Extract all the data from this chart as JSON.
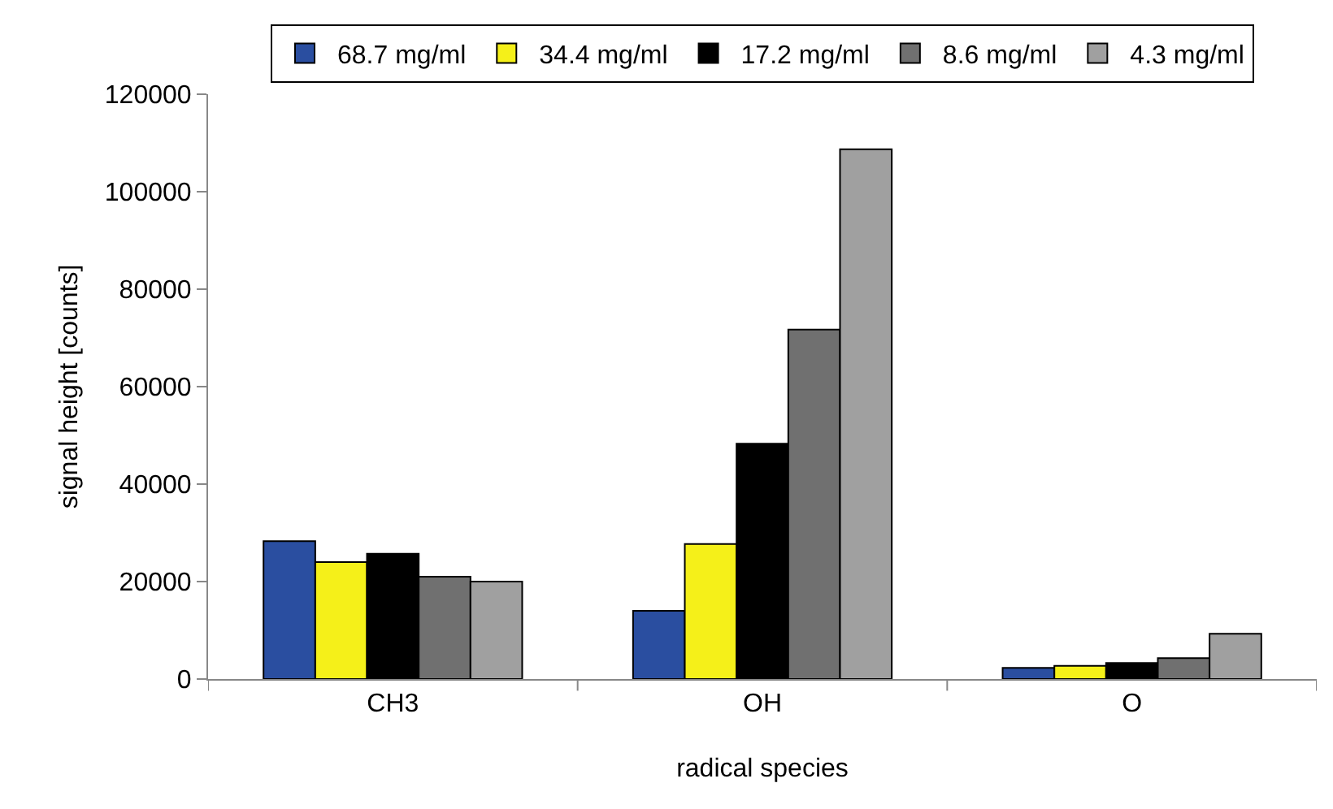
{
  "chart_data": {
    "type": "bar",
    "xlabel": "radical species",
    "ylabel": "signal height [counts]",
    "categories": [
      "CH3",
      "OH",
      "O"
    ],
    "series": [
      {
        "name": "68.7 mg/ml",
        "color": "#2a4ea0",
        "values": [
          28300,
          14000,
          2300
        ]
      },
      {
        "name": "34.4 mg/ml",
        "color": "#f5f019",
        "values": [
          24000,
          27700,
          2700
        ]
      },
      {
        "name": "17.2 mg/ml",
        "color": "#000000",
        "values": [
          25700,
          48300,
          3300
        ]
      },
      {
        "name": "8.6 mg/ml",
        "color": "#707070",
        "values": [
          21000,
          71700,
          4300
        ]
      },
      {
        "name": "4.3 mg/ml",
        "color": "#a0a0a0",
        "values": [
          20000,
          108700,
          9300
        ]
      }
    ],
    "ylim": [
      0,
      120000
    ],
    "yticks": [
      0,
      20000,
      40000,
      60000,
      80000,
      100000,
      120000
    ],
    "grid": false,
    "legend": "top"
  }
}
